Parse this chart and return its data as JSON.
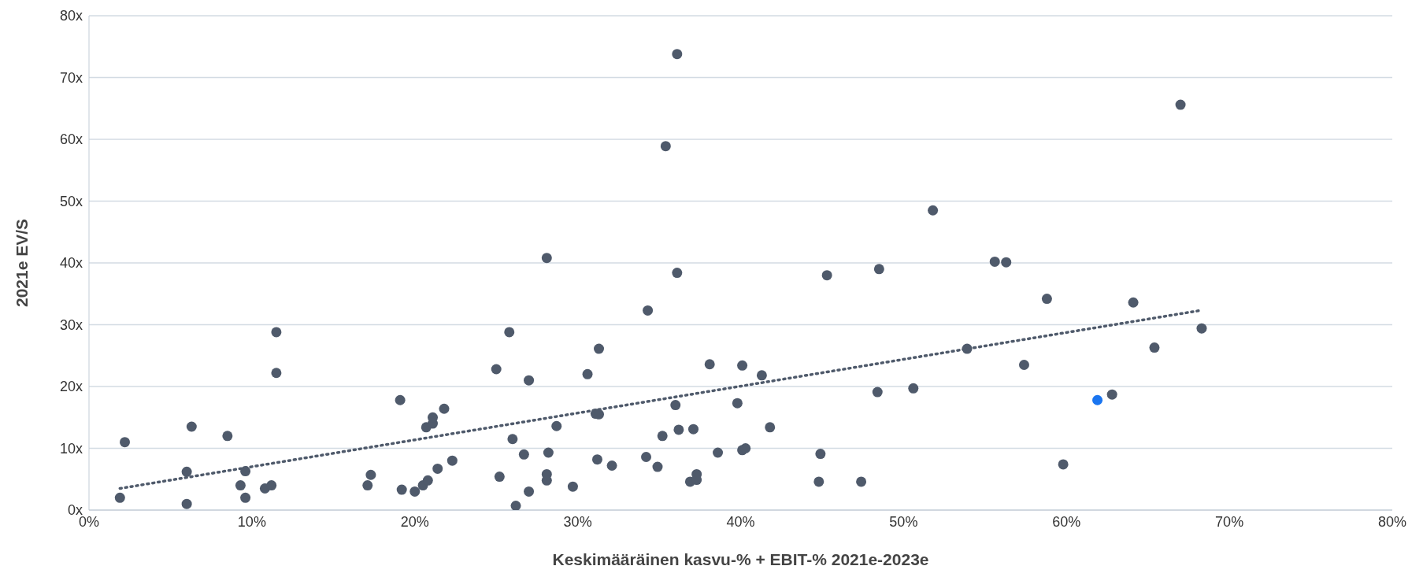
{
  "chart_data": {
    "type": "scatter",
    "xlabel": "Keskimääräinen kasvu-% + EBIT-% 2021e-2023e",
    "ylabel": "2021e EV/S",
    "xlim": [
      0,
      80
    ],
    "ylim": [
      0,
      80
    ],
    "xticks": [
      {
        "value": 0,
        "label": "0%"
      },
      {
        "value": 10,
        "label": "10%"
      },
      {
        "value": 20,
        "label": "20%"
      },
      {
        "value": 30,
        "label": "30%"
      },
      {
        "value": 40,
        "label": "40%"
      },
      {
        "value": 50,
        "label": "50%"
      },
      {
        "value": 60,
        "label": "60%"
      },
      {
        "value": 70,
        "label": "70%"
      },
      {
        "value": 80,
        "label": "80%"
      }
    ],
    "yticks": [
      {
        "value": 0,
        "label": "0x"
      },
      {
        "value": 10,
        "label": "10x"
      },
      {
        "value": 20,
        "label": "20x"
      },
      {
        "value": 30,
        "label": "30x"
      },
      {
        "value": 40,
        "label": "40x"
      },
      {
        "value": 50,
        "label": "50x"
      },
      {
        "value": 60,
        "label": "60x"
      },
      {
        "value": 70,
        "label": "70x"
      },
      {
        "value": 80,
        "label": "80x"
      }
    ],
    "grid": "y",
    "marker": "circle",
    "legend": false,
    "series": [
      {
        "type": "scatter",
        "color": "#4f5a6b",
        "x": [
          1.9,
          2.2,
          6,
          6,
          6.3,
          8.5,
          9.3,
          9.6,
          9.6,
          10.8,
          11.2,
          11.5,
          11.5,
          17.1,
          17.3,
          19.1,
          19.2,
          20,
          20.5,
          20.7,
          20.8,
          21.1,
          21.1,
          21.4,
          21.8,
          22.3,
          25,
          25.2,
          25.8,
          26,
          26.2,
          26.7,
          27,
          27,
          28.1,
          28.1,
          28.1,
          28.2,
          28.7,
          29.7,
          30.6,
          31.1,
          31.3,
          31.2,
          31.3,
          32.1,
          34.2,
          34.3,
          34.9,
          35.2,
          35.4,
          36,
          36.1,
          36.1,
          36.2,
          36.9,
          37.1,
          37.3,
          37.3,
          38.1,
          38.6,
          39.8,
          40.1,
          40.1,
          40.3,
          41.3,
          41.8,
          44.8,
          44.9,
          45.3,
          47.4,
          48.4,
          48.5,
          50.6,
          51.8,
          53.9,
          55.6,
          56.3,
          57.4,
          58.8,
          59.8,
          62.8,
          64.1,
          65.4,
          67,
          68.3
        ],
        "values": [
          2,
          11,
          6.2,
          1,
          13.5,
          12,
          4,
          6.3,
          2,
          3.5,
          4,
          28.8,
          22.2,
          4,
          5.7,
          17.8,
          3.3,
          3,
          4,
          13.4,
          4.8,
          14,
          15,
          6.7,
          16.4,
          8,
          22.8,
          5.4,
          28.8,
          11.5,
          0.7,
          9,
          21,
          3,
          40.8,
          5.8,
          4.8,
          9.3,
          13.6,
          3.8,
          22,
          15.6,
          15.5,
          8.2,
          26.1,
          7.2,
          8.6,
          32.3,
          7,
          12,
          58.9,
          17,
          73.8,
          38.4,
          13,
          4.6,
          13.1,
          5.8,
          4.9,
          23.6,
          9.3,
          17.3,
          9.7,
          23.4,
          10,
          21.8,
          13.4,
          4.6,
          9.1,
          38,
          4.6,
          19.1,
          39,
          19.7,
          48.5,
          26.1,
          40.2,
          40.1,
          23.5,
          34.2,
          7.4,
          18.7,
          33.6,
          26.3,
          65.6,
          29.4
        ]
      },
      {
        "type": "scatter",
        "color": "#1a75f0",
        "x": [
          61.9
        ],
        "values": [
          17.8
        ]
      },
      {
        "type": "line",
        "color": "#4f5a6b",
        "line_style": "dotted",
        "marker": "none",
        "x": [
          1.9,
          68.2
        ],
        "values": [
          3.5,
          32.3
        ]
      }
    ]
  }
}
